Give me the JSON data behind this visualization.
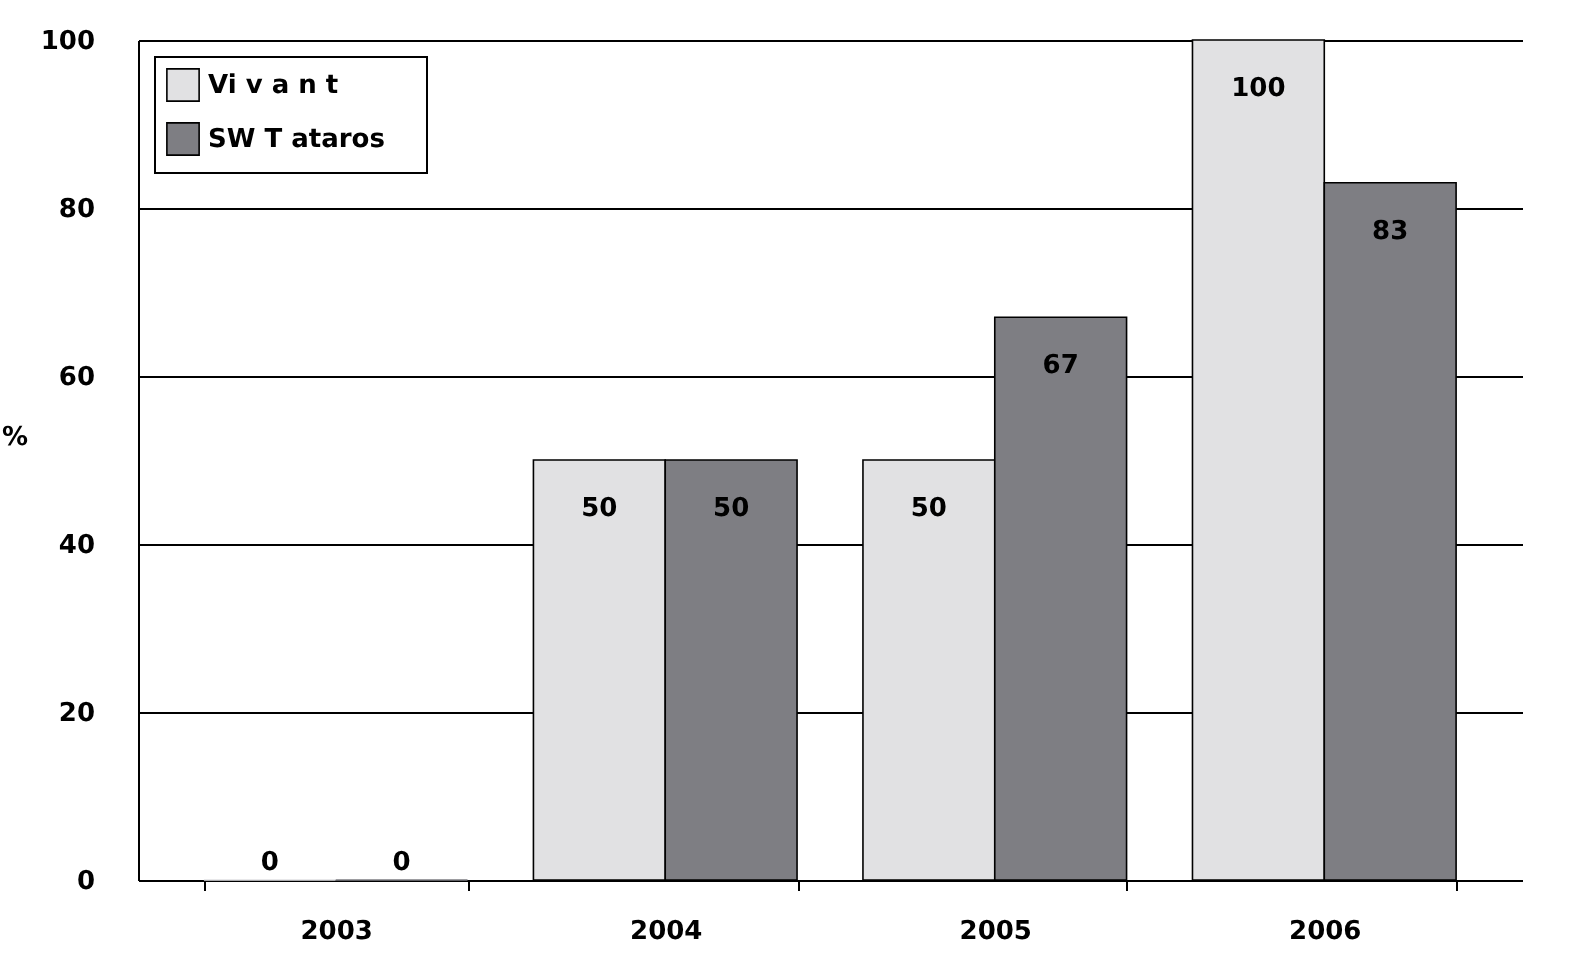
{
  "chart_data": {
    "type": "bar",
    "ylabel": "%",
    "categories": [
      "2003",
      "2004",
      "2005",
      "2006"
    ],
    "series": [
      {
        "name": "Vi v a n t",
        "color": "#e1e1e3",
        "values": [
          0,
          50,
          50,
          100
        ]
      },
      {
        "name": "SW    T ataros",
        "color": "#7e7e83",
        "values": [
          0,
          50,
          67,
          83
        ]
      }
    ],
    "ylim": [
      0,
      100
    ],
    "yticks": [
      0,
      20,
      40,
      60,
      80,
      100
    ],
    "grid": "y",
    "legend": "top left",
    "data_labels": true
  }
}
